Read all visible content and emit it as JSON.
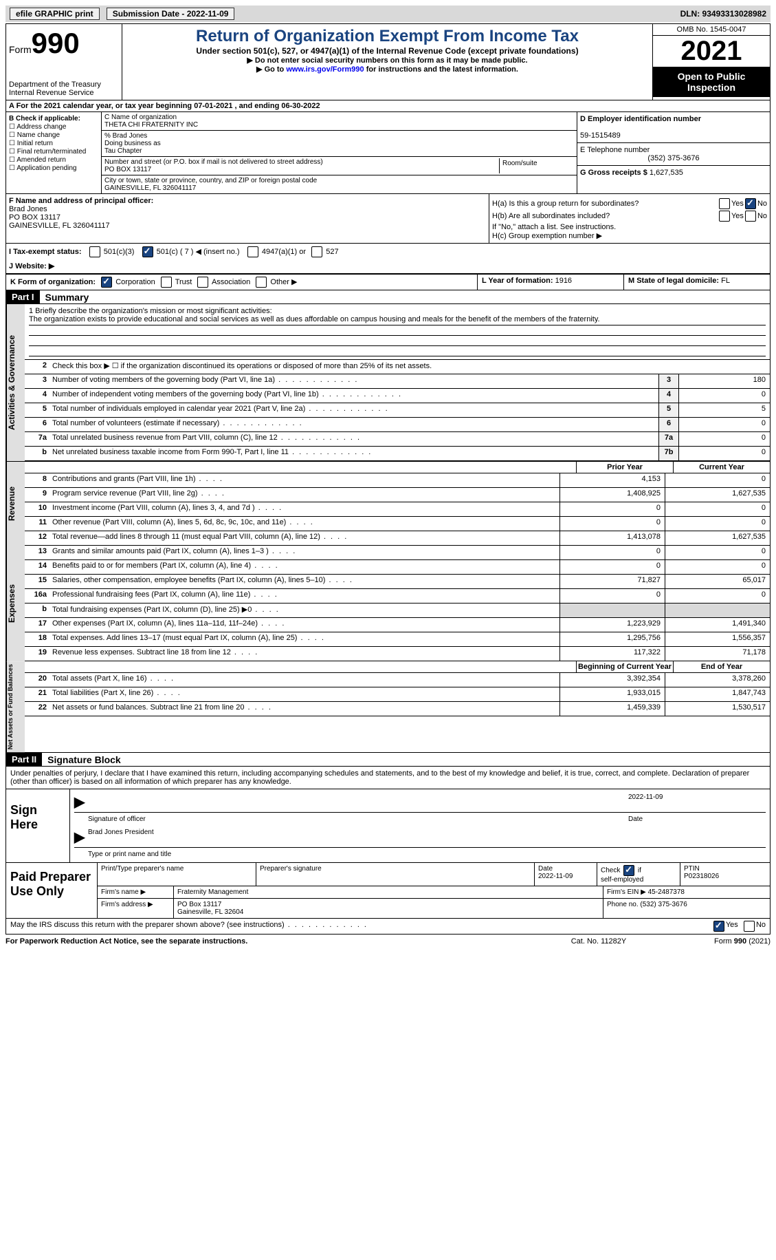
{
  "topbar": {
    "efile": "efile GRAPHIC print",
    "submission": "Submission Date - 2022-11-09",
    "dln": "DLN: 93493313028982"
  },
  "header": {
    "form_label": "Form",
    "form_num": "990",
    "dept": "Department of the Treasury",
    "irs": "Internal Revenue Service",
    "title": "Return of Organization Exempt From Income Tax",
    "subtitle": "Under section 501(c), 527, or 4947(a)(1) of the Internal Revenue Code (except private foundations)",
    "instr1": "▶ Do not enter social security numbers on this form as it may be made public.",
    "instr2_a": "▶ Go to ",
    "instr2_link": "www.irs.gov/Form990",
    "instr2_b": " for instructions and the latest information.",
    "omb": "OMB No. 1545-0047",
    "year": "2021",
    "inspect": "Open to Public Inspection"
  },
  "row_a": "A For the 2021 calendar year, or tax year beginning 07-01-2021   , and ending 06-30-2022",
  "col_b": {
    "header": "B Check if applicable:",
    "opts": [
      "Address change",
      "Name change",
      "Initial return",
      "Final return/terminated",
      "Amended return",
      "Application pending"
    ]
  },
  "col_c": {
    "name_lbl": "C Name of organization",
    "name": "THETA CHI FRATERNITY INC",
    "care": "% Brad Jones",
    "dba_lbl": "Doing business as",
    "dba": "Tau Chapter",
    "street_lbl": "Number and street (or P.O. box if mail is not delivered to street address)",
    "street": "PO BOX 13117",
    "room_lbl": "Room/suite",
    "city_lbl": "City or town, state or province, country, and ZIP or foreign postal code",
    "city": "GAINESVILLE, FL  326041117"
  },
  "col_de": {
    "d_lbl": "D Employer identification number",
    "d_val": "59-1515489",
    "e_lbl": "E Telephone number",
    "e_val": "(352) 375-3676",
    "g_lbl": "G Gross receipts $",
    "g_val": "1,627,535"
  },
  "f": {
    "lbl": "F Name and address of principal officer:",
    "name": "Brad Jones",
    "street": "PO BOX 13117",
    "city": "GAINESVILLE, FL  326041117"
  },
  "h": {
    "a": "H(a)  Is this a group return for subordinates?",
    "b": "H(b)  Are all subordinates included?",
    "b2": "If \"No,\" attach a list. See instructions.",
    "c": "H(c)  Group exemption number ▶",
    "yes": "Yes",
    "no": "No"
  },
  "i": {
    "lbl": "I  Tax-exempt status:",
    "o1": "501(c)(3)",
    "o2": "501(c) ( 7 ) ◀ (insert no.)",
    "o3": "4947(a)(1) or",
    "o4": "527"
  },
  "j": "J  Website: ▶",
  "k": {
    "lbl": "K Form of organization:",
    "o1": "Corporation",
    "o2": "Trust",
    "o3": "Association",
    "o4": "Other ▶"
  },
  "l": {
    "lbl": "L Year of formation:",
    "val": "1916"
  },
  "m": {
    "lbl": "M State of legal domicile:",
    "val": "FL"
  },
  "part1": {
    "header": "Part I",
    "title": "Summary"
  },
  "mission": {
    "lbl": "1   Briefly describe the organization's mission or most significant activities:",
    "text": "The organization exists to provide educational and social services as well as dues affordable on campus housing and meals for the benefit of the members of the fraternity."
  },
  "line2": "Check this box ▶ ☐  if the organization discontinued its operations or disposed of more than 25% of its net assets.",
  "governance": [
    {
      "n": "3",
      "d": "Number of voting members of the governing body (Part VI, line 1a)",
      "b": "3",
      "v": "180"
    },
    {
      "n": "4",
      "d": "Number of independent voting members of the governing body (Part VI, line 1b)",
      "b": "4",
      "v": "0"
    },
    {
      "n": "5",
      "d": "Total number of individuals employed in calendar year 2021 (Part V, line 2a)",
      "b": "5",
      "v": "5"
    },
    {
      "n": "6",
      "d": "Total number of volunteers (estimate if necessary)",
      "b": "6",
      "v": "0"
    },
    {
      "n": "7a",
      "d": "Total unrelated business revenue from Part VIII, column (C), line 12",
      "b": "7a",
      "v": "0"
    },
    {
      "n": "b",
      "d": "Net unrelated business taxable income from Form 990-T, Part I, line 11",
      "b": "7b",
      "v": "0"
    }
  ],
  "cols": {
    "prior": "Prior Year",
    "current": "Current Year",
    "begin": "Beginning of Current Year",
    "end": "End of Year"
  },
  "revenue": [
    {
      "n": "8",
      "d": "Contributions and grants (Part VIII, line 1h)",
      "p": "4,153",
      "c": "0"
    },
    {
      "n": "9",
      "d": "Program service revenue (Part VIII, line 2g)",
      "p": "1,408,925",
      "c": "1,627,535"
    },
    {
      "n": "10",
      "d": "Investment income (Part VIII, column (A), lines 3, 4, and 7d )",
      "p": "0",
      "c": "0"
    },
    {
      "n": "11",
      "d": "Other revenue (Part VIII, column (A), lines 5, 6d, 8c, 9c, 10c, and 11e)",
      "p": "0",
      "c": "0"
    },
    {
      "n": "12",
      "d": "Total revenue—add lines 8 through 11 (must equal Part VIII, column (A), line 12)",
      "p": "1,413,078",
      "c": "1,627,535"
    }
  ],
  "expenses": [
    {
      "n": "13",
      "d": "Grants and similar amounts paid (Part IX, column (A), lines 1–3 )",
      "p": "0",
      "c": "0"
    },
    {
      "n": "14",
      "d": "Benefits paid to or for members (Part IX, column (A), line 4)",
      "p": "0",
      "c": "0"
    },
    {
      "n": "15",
      "d": "Salaries, other compensation, employee benefits (Part IX, column (A), lines 5–10)",
      "p": "71,827",
      "c": "65,017"
    },
    {
      "n": "16a",
      "d": "Professional fundraising fees (Part IX, column (A), line 11e)",
      "p": "0",
      "c": "0"
    },
    {
      "n": "b",
      "d": "Total fundraising expenses (Part IX, column (D), line 25) ▶0",
      "p": "",
      "c": "",
      "shade": true
    },
    {
      "n": "17",
      "d": "Other expenses (Part IX, column (A), lines 11a–11d, 11f–24e)",
      "p": "1,223,929",
      "c": "1,491,340"
    },
    {
      "n": "18",
      "d": "Total expenses. Add lines 13–17 (must equal Part IX, column (A), line 25)",
      "p": "1,295,756",
      "c": "1,556,357"
    },
    {
      "n": "19",
      "d": "Revenue less expenses. Subtract line 18 from line 12",
      "p": "117,322",
      "c": "71,178"
    }
  ],
  "netassets": [
    {
      "n": "20",
      "d": "Total assets (Part X, line 16)",
      "p": "3,392,354",
      "c": "3,378,260"
    },
    {
      "n": "21",
      "d": "Total liabilities (Part X, line 26)",
      "p": "1,933,015",
      "c": "1,847,743"
    },
    {
      "n": "22",
      "d": "Net assets or fund balances. Subtract line 21 from line 20",
      "p": "1,459,339",
      "c": "1,530,517"
    }
  ],
  "part2": {
    "header": "Part II",
    "title": "Signature Block"
  },
  "sig_text": "Under penalties of perjury, I declare that I have examined this return, including accompanying schedules and statements, and to the best of my knowledge and belief, it is true, correct, and complete. Declaration of preparer (other than officer) is based on all information of which preparer has any knowledge.",
  "sign": {
    "here": "Sign Here",
    "sig_lbl": "Signature of officer",
    "date": "2022-11-09",
    "date_lbl": "Date",
    "name": "Brad Jones  President",
    "name_lbl": "Type or print name and title"
  },
  "prep": {
    "label": "Paid Preparer Use Only",
    "r1": {
      "name_lbl": "Print/Type preparer's name",
      "sig_lbl": "Preparer's signature",
      "date_lbl": "Date",
      "date": "2022-11-09",
      "chk_lbl": "Check ☑ if self-employed",
      "ptin_lbl": "PTIN",
      "ptin": "P02318026"
    },
    "r2": {
      "firm_lbl": "Firm's name   ▶",
      "firm": "Fraternity Management",
      "ein_lbl": "Firm's EIN ▶",
      "ein": "45-2487378"
    },
    "r3": {
      "addr_lbl": "Firm's address ▶",
      "addr1": "PO Box 13117",
      "addr2": "Gainesville, FL  32604",
      "phone_lbl": "Phone no.",
      "phone": "(532) 375-3676"
    }
  },
  "discuss": {
    "q": "May the IRS discuss this return with the preparer shown above? (see instructions)",
    "yes": "Yes",
    "no": "No"
  },
  "footer": {
    "pra": "For Paperwork Reduction Act Notice, see the separate instructions.",
    "cat": "Cat. No. 11282Y",
    "form": "Form 990 (2021)"
  },
  "vtabs": {
    "gov": "Activities & Governance",
    "rev": "Revenue",
    "exp": "Expenses",
    "net": "Net Assets or Fund Balances"
  }
}
